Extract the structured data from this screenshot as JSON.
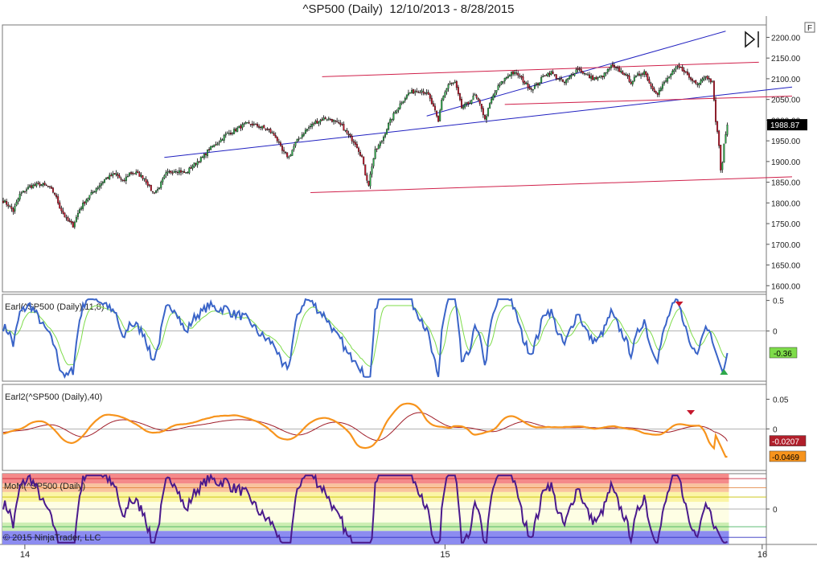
{
  "chart_data": {
    "type": "candlestick",
    "title": "^SP500 (Daily)  12/10/2013 - 8/28/2015",
    "copyright": "© 2015 NinjaTrader, LLC",
    "f_badge": "F",
    "x_ticks": [
      {
        "label": "14",
        "bar": 13
      },
      {
        "label": "15",
        "bar": 266
      },
      {
        "label": "16",
        "bar": 457
      }
    ],
    "price_panel": {
      "y_ticks": [
        "2200.00",
        "2150.00",
        "2100.00",
        "2050.00",
        "2000.00",
        "1950.00",
        "1900.00",
        "1850.00",
        "1800.00",
        "1750.00",
        "1700.00",
        "1650.00",
        "1600.00"
      ],
      "ylim": [
        1585,
        2230
      ],
      "last_value": "1988.87",
      "anchors": [
        [
          0,
          1805
        ],
        [
          3,
          1795
        ],
        [
          6,
          1780
        ],
        [
          10,
          1820
        ],
        [
          16,
          1840
        ],
        [
          22,
          1845
        ],
        [
          27,
          1840
        ],
        [
          31,
          1822
        ],
        [
          34,
          1790
        ],
        [
          38,
          1760
        ],
        [
          42,
          1745
        ],
        [
          46,
          1785
        ],
        [
          50,
          1808
        ],
        [
          56,
          1835
        ],
        [
          62,
          1860
        ],
        [
          68,
          1870
        ],
        [
          72,
          1850
        ],
        [
          76,
          1872
        ],
        [
          80,
          1872
        ],
        [
          85,
          1860
        ],
        [
          90,
          1825
        ],
        [
          93,
          1832
        ],
        [
          98,
          1870
        ],
        [
          104,
          1880
        ],
        [
          110,
          1872
        ],
        [
          114,
          1890
        ],
        [
          120,
          1910
        ],
        [
          124,
          1930
        ],
        [
          130,
          1948
        ],
        [
          134,
          1965
        ],
        [
          138,
          1972
        ],
        [
          142,
          1982
        ],
        [
          146,
          1990
        ],
        [
          150,
          1990
        ],
        [
          156,
          1982
        ],
        [
          160,
          1975
        ],
        [
          164,
          1960
        ],
        [
          168,
          1925
        ],
        [
          172,
          1910
        ],
        [
          176,
          1945
        ],
        [
          182,
          1975
        ],
        [
          188,
          1995
        ],
        [
          194,
          2005
        ],
        [
          198,
          2000
        ],
        [
          204,
          1985
        ],
        [
          208,
          1962
        ],
        [
          212,
          1945
        ],
        [
          216,
          1910
        ],
        [
          218,
          1870
        ],
        [
          220,
          1845
        ],
        [
          222,
          1890
        ],
        [
          224,
          1925
        ],
        [
          228,
          1950
        ],
        [
          232,
          1990
        ],
        [
          236,
          2020
        ],
        [
          240,
          2045
        ],
        [
          244,
          2065
        ],
        [
          248,
          2070
        ],
        [
          252,
          2072
        ],
        [
          256,
          2060
        ],
        [
          260,
          2020
        ],
        [
          262,
          1995
        ],
        [
          264,
          2050
        ],
        [
          268,
          2085
        ],
        [
          272,
          2090
        ],
        [
          274,
          2060
        ],
        [
          276,
          2030
        ],
        [
          280,
          2040
        ],
        [
          284,
          2060
        ],
        [
          288,
          2030
        ],
        [
          290,
          2000
        ],
        [
          294,
          2050
        ],
        [
          298,
          2080
        ],
        [
          302,
          2100
        ],
        [
          306,
          2115
        ],
        [
          310,
          2110
        ],
        [
          314,
          2090
        ],
        [
          318,
          2075
        ],
        [
          322,
          2088
        ],
        [
          326,
          2110
        ],
        [
          330,
          2115
        ],
        [
          334,
          2100
        ],
        [
          338,
          2090
        ],
        [
          342,
          2108
        ],
        [
          346,
          2125
        ],
        [
          350,
          2112
        ],
        [
          354,
          2102
        ],
        [
          358,
          2100
        ],
        [
          362,
          2110
        ],
        [
          366,
          2130
        ],
        [
          370,
          2122
        ],
        [
          374,
          2112
        ],
        [
          378,
          2092
        ],
        [
          382,
          2108
        ],
        [
          386,
          2118
        ],
        [
          390,
          2082
        ],
        [
          394,
          2065
        ],
        [
          398,
          2090
        ],
        [
          402,
          2110
        ],
        [
          406,
          2128
        ],
        [
          410,
          2120
        ],
        [
          414,
          2098
        ],
        [
          418,
          2090
        ],
        [
          422,
          2105
        ],
        [
          425,
          2103
        ],
        [
          427,
          2090
        ],
        [
          429,
          2000
        ],
        [
          431,
          1940
        ],
        [
          432,
          1880
        ],
        [
          433,
          1893
        ],
        [
          434,
          1940
        ],
        [
          435,
          1970
        ],
        [
          436,
          1988.87
        ]
      ]
    },
    "earl_panel": {
      "label": "Earl(^SP500 (Daily),11,8)",
      "y_ticks": [
        "0.5",
        "0"
      ],
      "ylim": [
        -0.82,
        0.6
      ],
      "value_badge": "-0.36",
      "series": [
        {
          "name": "Earl",
          "color": "#3a64c8",
          "amp": 0.22,
          "n_freq": 0.25,
          "period": 30,
          "phase": 0.3
        },
        {
          "name": "Signal",
          "color": "#7edc4a",
          "amp": 0.12,
          "n_freq": 0.25,
          "period": 30,
          "phase": 1.1
        }
      ]
    },
    "earl2_panel": {
      "label": "Earl2(^SP500 (Daily),40)",
      "y_ticks": [
        "0.05",
        "0"
      ],
      "ylim": [
        -0.07,
        0.075
      ],
      "value_badges": [
        "-0.0207",
        "-0.0469"
      ],
      "series": [
        {
          "name": "Slow",
          "color": "#a01e2a"
        },
        {
          "name": "Fast",
          "color": "#f7941d"
        }
      ]
    },
    "mom_panel": {
      "label": "MoM(^SP500 (Daily)",
      "y_ticks": [
        "0"
      ],
      "ylim": [
        -1.0,
        1.0
      ],
      "bands": [
        {
          "from": 0.72,
          "to": 1.0,
          "color": "#f48a8a"
        },
        {
          "from": 0.48,
          "to": 0.72,
          "color": "#f9c49e"
        },
        {
          "from": 0.2,
          "to": 0.48,
          "color": "#fbf5a6"
        },
        {
          "from": -0.38,
          "to": 0.2,
          "color": "#fefee4"
        },
        {
          "from": -0.62,
          "to": -0.38,
          "color": "#cdeeb3"
        },
        {
          "from": -1.0,
          "to": -0.62,
          "color": "#8c8cf0"
        }
      ],
      "line_color": "#4a1a8c"
    }
  }
}
